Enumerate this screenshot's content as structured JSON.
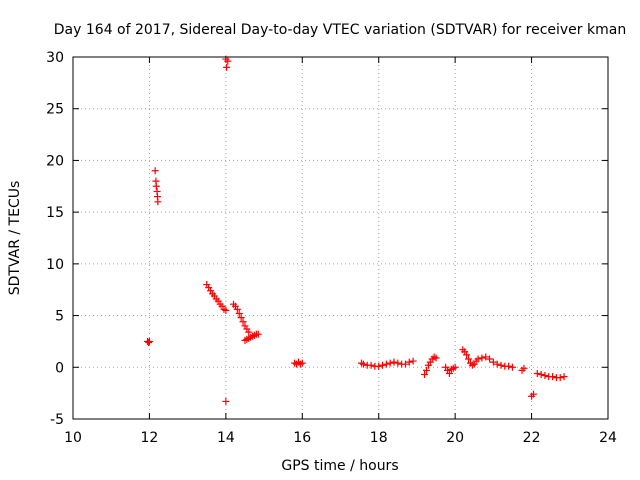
{
  "colors": {
    "series": "#ff0000",
    "grid": "#a0a0a0",
    "axis": "#000000",
    "background": "#ffffff"
  },
  "chart_data": {
    "type": "scatter",
    "title": "Day 164 of 2017, Sidereal Day-to-day VTEC variation (SDTVAR) for receiver kman",
    "xlabel": "GPS time / hours",
    "ylabel": "SDTVAR / TECUs",
    "xlim": [
      10,
      24
    ],
    "ylim": [
      -5,
      30
    ],
    "xticks": [
      10,
      12,
      14,
      16,
      18,
      20,
      22,
      24
    ],
    "yticks": [
      -5,
      0,
      5,
      10,
      15,
      20,
      25,
      30
    ],
    "grid": true,
    "marker": "plus",
    "series": [
      {
        "name": "SDTVAR",
        "points": [
          [
            11.95,
            2.5
          ],
          [
            11.98,
            2.4
          ],
          [
            12.0,
            2.5
          ],
          [
            12.15,
            19.0
          ],
          [
            12.17,
            18.0
          ],
          [
            12.18,
            17.5
          ],
          [
            12.2,
            17.0
          ],
          [
            12.21,
            16.5
          ],
          [
            12.22,
            16.0
          ],
          [
            14.0,
            29.8
          ],
          [
            14.05,
            29.6
          ],
          [
            14.02,
            29.0
          ],
          [
            14.0,
            -3.3
          ],
          [
            13.5,
            8.0
          ],
          [
            13.55,
            7.7
          ],
          [
            13.6,
            7.4
          ],
          [
            13.65,
            7.1
          ],
          [
            13.7,
            6.9
          ],
          [
            13.75,
            6.6
          ],
          [
            13.8,
            6.4
          ],
          [
            13.85,
            6.1
          ],
          [
            13.9,
            5.9
          ],
          [
            13.95,
            5.6
          ],
          [
            14.0,
            5.5
          ],
          [
            14.2,
            6.1
          ],
          [
            14.25,
            5.9
          ],
          [
            14.3,
            5.6
          ],
          [
            14.35,
            5.2
          ],
          [
            14.4,
            4.8
          ],
          [
            14.45,
            4.4
          ],
          [
            14.5,
            4.0
          ],
          [
            14.55,
            3.7
          ],
          [
            14.6,
            3.4
          ],
          [
            14.5,
            2.6
          ],
          [
            14.55,
            2.7
          ],
          [
            14.6,
            2.8
          ],
          [
            14.65,
            2.9
          ],
          [
            14.7,
            3.0
          ],
          [
            14.75,
            3.1
          ],
          [
            14.8,
            3.2
          ],
          [
            14.85,
            3.2
          ],
          [
            15.8,
            0.4
          ],
          [
            15.85,
            0.3
          ],
          [
            15.9,
            0.5
          ],
          [
            15.95,
            0.3
          ],
          [
            16.0,
            0.4
          ],
          [
            17.55,
            0.4
          ],
          [
            17.6,
            0.3
          ],
          [
            17.7,
            0.2
          ],
          [
            17.8,
            0.2
          ],
          [
            17.9,
            0.1
          ],
          [
            18.0,
            0.1
          ],
          [
            18.1,
            0.2
          ],
          [
            18.2,
            0.3
          ],
          [
            18.3,
            0.4
          ],
          [
            18.4,
            0.5
          ],
          [
            18.5,
            0.4
          ],
          [
            18.6,
            0.3
          ],
          [
            18.7,
            0.3
          ],
          [
            18.8,
            0.5
          ],
          [
            18.9,
            0.6
          ],
          [
            19.2,
            -0.7
          ],
          [
            19.25,
            -0.3
          ],
          [
            19.3,
            0.2
          ],
          [
            19.35,
            0.5
          ],
          [
            19.4,
            0.8
          ],
          [
            19.45,
            1.0
          ],
          [
            19.5,
            0.9
          ],
          [
            19.75,
            0.0
          ],
          [
            19.8,
            -0.3
          ],
          [
            19.85,
            -0.6
          ],
          [
            19.9,
            -0.2
          ],
          [
            19.95,
            -0.1
          ],
          [
            20.0,
            0.0
          ],
          [
            20.2,
            1.7
          ],
          [
            20.25,
            1.5
          ],
          [
            20.3,
            1.2
          ],
          [
            20.35,
            0.8
          ],
          [
            20.4,
            0.4
          ],
          [
            20.45,
            0.2
          ],
          [
            20.5,
            0.3
          ],
          [
            20.55,
            0.6
          ],
          [
            20.6,
            0.8
          ],
          [
            20.7,
            0.9
          ],
          [
            20.8,
            1.0
          ],
          [
            20.9,
            0.8
          ],
          [
            21.0,
            0.5
          ],
          [
            21.1,
            0.3
          ],
          [
            21.2,
            0.2
          ],
          [
            21.3,
            0.1
          ],
          [
            21.4,
            0.1
          ],
          [
            21.5,
            0.0
          ],
          [
            21.75,
            -0.3
          ],
          [
            21.8,
            -0.1
          ],
          [
            22.0,
            -2.8
          ],
          [
            22.05,
            -2.6
          ],
          [
            22.15,
            -0.6
          ],
          [
            22.25,
            -0.7
          ],
          [
            22.35,
            -0.8
          ],
          [
            22.45,
            -0.9
          ],
          [
            22.55,
            -0.9
          ],
          [
            22.65,
            -1.0
          ],
          [
            22.75,
            -1.0
          ],
          [
            22.85,
            -0.9
          ]
        ]
      }
    ]
  }
}
